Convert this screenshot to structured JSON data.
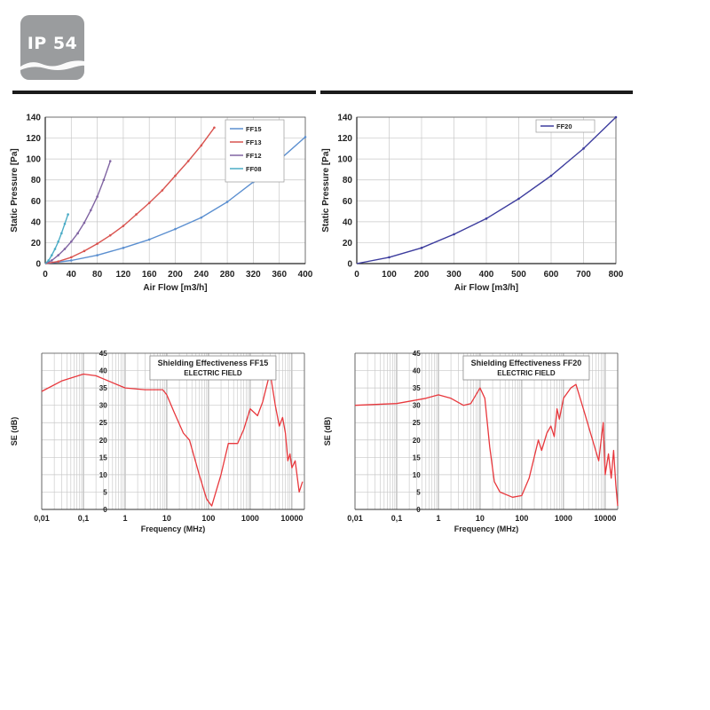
{
  "badge": {
    "label": "IP 54",
    "color": "#9a9c9e"
  },
  "chart_data": [
    {
      "id": "airflow_ff15",
      "type": "line",
      "title": "",
      "xlabel": "Air Flow [m3/h]",
      "ylabel": "Static Pressure [Pa]",
      "xlim": [
        0,
        400
      ],
      "ylim": [
        0,
        140
      ],
      "xticks": [
        0,
        40,
        80,
        120,
        160,
        200,
        240,
        280,
        320,
        360,
        400
      ],
      "yticks": [
        0,
        20,
        40,
        60,
        80,
        100,
        120,
        140
      ],
      "grid": true,
      "legend_position": "top-right",
      "series": [
        {
          "name": "FF15",
          "color": "#5b8fd0",
          "x": [
            0,
            40,
            80,
            120,
            160,
            200,
            240,
            280,
            320,
            360,
            400
          ],
          "y": [
            0,
            3,
            8,
            15,
            23,
            33,
            44,
            59,
            78,
            99,
            121
          ]
        },
        {
          "name": "FF13",
          "color": "#d9534f",
          "x": [
            0,
            20,
            40,
            60,
            80,
            100,
            120,
            140,
            160,
            180,
            200,
            220,
            240,
            260
          ],
          "y": [
            0,
            2,
            6,
            12,
            19,
            27,
            36,
            47,
            58,
            70,
            84,
            98,
            113,
            130
          ]
        },
        {
          "name": "FF12",
          "color": "#8064a2",
          "x": [
            0,
            10,
            20,
            30,
            40,
            50,
            60,
            70,
            80,
            90,
            100
          ],
          "y": [
            0,
            3,
            8,
            14,
            21,
            29,
            39,
            51,
            64,
            80,
            98
          ]
        },
        {
          "name": "FF08",
          "color": "#4bacc6",
          "x": [
            0,
            5,
            10,
            15,
            20,
            25,
            30,
            35
          ],
          "y": [
            0,
            3,
            8,
            14,
            21,
            29,
            38,
            47
          ]
        }
      ]
    },
    {
      "id": "airflow_ff20",
      "type": "line",
      "title": "",
      "xlabel": "Air Flow [m3/h]",
      "ylabel": "Static Pressure [Pa]",
      "xlim": [
        0,
        800
      ],
      "ylim": [
        0,
        140
      ],
      "xticks": [
        0,
        100,
        200,
        300,
        400,
        500,
        600,
        700,
        800
      ],
      "yticks": [
        0,
        20,
        40,
        60,
        80,
        100,
        120,
        140
      ],
      "grid": true,
      "legend_position": "top-right",
      "series": [
        {
          "name": "FF20",
          "color": "#3d3d9e",
          "x": [
            0,
            100,
            200,
            300,
            400,
            500,
            600,
            700,
            800
          ],
          "y": [
            0,
            6,
            15,
            28,
            43,
            62,
            84,
            110,
            140
          ]
        }
      ]
    },
    {
      "id": "shielding_ff15",
      "type": "line",
      "title": "Shielding Effectiveness FF15",
      "subtitle": "ELECTRIC FIELD",
      "xlabel": "Frequency (MHz)",
      "ylabel": "SE (dB)",
      "xscale": "log",
      "xlim": [
        0.01,
        20000
      ],
      "ylim": [
        0,
        45
      ],
      "xtick_labels": [
        "0,01",
        "0,1",
        "1",
        "10",
        "100",
        "1000",
        "10000"
      ],
      "xticks": [
        0.01,
        0.1,
        1,
        10,
        100,
        1000,
        10000
      ],
      "yticks": [
        0,
        5,
        10,
        15,
        20,
        25,
        30,
        35,
        40,
        45
      ],
      "grid": true,
      "series": [
        {
          "name": "",
          "color": "#e8383d",
          "x": [
            0.01,
            0.03,
            0.1,
            0.2,
            0.5,
            1,
            3,
            8,
            10,
            15,
            25,
            35,
            60,
            90,
            120,
            200,
            300,
            500,
            700,
            1000,
            1500,
            2000,
            3000,
            4000,
            5000,
            6000,
            7000,
            8000,
            9000,
            10000,
            12000,
            15000,
            18000
          ],
          "y": [
            34,
            37,
            39,
            38.5,
            36.5,
            35,
            34.5,
            34.5,
            33,
            28,
            22,
            20,
            10,
            3,
            1,
            10,
            19,
            19,
            23,
            29,
            27,
            31,
            39.5,
            30,
            24,
            26.5,
            22,
            14,
            16,
            12,
            14,
            5,
            8
          ]
        }
      ]
    },
    {
      "id": "shielding_ff20",
      "type": "line",
      "title": "Shielding Effectiveness FF20",
      "subtitle": "ELECTRIC FIELD",
      "xlabel": "Frequency (MHz)",
      "ylabel": "SE (dB)",
      "xscale": "log",
      "xlim": [
        0.01,
        20000
      ],
      "ylim": [
        0,
        45
      ],
      "xtick_labels": [
        "0,01",
        "0,1",
        "1",
        "10",
        "100",
        "1000",
        "10000"
      ],
      "xticks": [
        0.01,
        0.1,
        1,
        10,
        100,
        1000,
        10000
      ],
      "yticks": [
        0,
        5,
        10,
        15,
        20,
        25,
        30,
        35,
        40,
        45
      ],
      "grid": true,
      "series": [
        {
          "name": "",
          "color": "#e8383d",
          "x": [
            0.01,
            0.1,
            0.5,
            1,
            2,
            4,
            6,
            10,
            13,
            17,
            22,
            30,
            60,
            100,
            150,
            250,
            300,
            400,
            500,
            600,
            700,
            800,
            1000,
            1500,
            2000,
            3000,
            5000,
            7000,
            9000,
            10000,
            12000,
            14000,
            16000,
            18000,
            20000
          ],
          "y": [
            30,
            30.5,
            32,
            33,
            32,
            30,
            30.5,
            35,
            32,
            18,
            8,
            5,
            3.5,
            4,
            9,
            20,
            17,
            22,
            24,
            21,
            29,
            26,
            32,
            35,
            36,
            29,
            20,
            14,
            25,
            10,
            16,
            9,
            17,
            7,
            1
          ]
        }
      ]
    }
  ]
}
